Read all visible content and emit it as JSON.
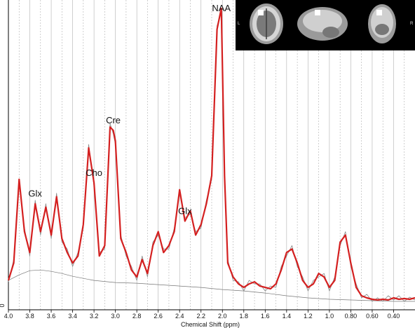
{
  "chart_data": {
    "type": "line",
    "xlabel": "Chemical Shift (ppm)",
    "x_ticks": [
      "4.0",
      "3.8",
      "3.6",
      "3.4",
      "3.2",
      "3.0",
      "2.8",
      "2.6",
      "2.4",
      "2.2",
      "2.0",
      "1.8",
      "1.6",
      "1.4",
      "1.2",
      "1.0",
      "0.80",
      "0.60",
      "0.40"
    ],
    "xlim": [
      4.0,
      0.2
    ],
    "x_reversed": true,
    "y_tick_label": "0",
    "grid": "vertical solid and dashed lines",
    "peaks": [
      {
        "label": "Glx",
        "ppm": 3.75
      },
      {
        "label": "Cho",
        "ppm": 3.2
      },
      {
        "label": "Cre",
        "ppm": 3.02
      },
      {
        "label": "Glx",
        "ppm": 2.35
      },
      {
        "label": "NAA",
        "ppm": 2.01
      }
    ],
    "series": [
      {
        "role": "fit",
        "color": "#d42020",
        "x": [
          4.0,
          3.95,
          3.9,
          3.85,
          3.8,
          3.75,
          3.7,
          3.65,
          3.6,
          3.55,
          3.5,
          3.45,
          3.4,
          3.35,
          3.3,
          3.25,
          3.2,
          3.15,
          3.1,
          3.05,
          3.02,
          3.0,
          2.95,
          2.9,
          2.85,
          2.8,
          2.75,
          2.7,
          2.65,
          2.6,
          2.55,
          2.5,
          2.45,
          2.4,
          2.35,
          2.3,
          2.25,
          2.2,
          2.15,
          2.1,
          2.05,
          2.01,
          1.98,
          1.95,
          1.9,
          1.85,
          1.8,
          1.75,
          1.7,
          1.65,
          1.6,
          1.55,
          1.5,
          1.45,
          1.4,
          1.35,
          1.3,
          1.25,
          1.2,
          1.15,
          1.1,
          1.05,
          1.0,
          0.95,
          0.9,
          0.85,
          0.8,
          0.75,
          0.7,
          0.65,
          0.6,
          0.55,
          0.5,
          0.45,
          0.4,
          0.35,
          0.3,
          0.25,
          0.2
        ],
        "y": [
          30,
          55,
          175,
          100,
          70,
          140,
          100,
          135,
          95,
          150,
          90,
          70,
          55,
          65,
          110,
          220,
          170,
          65,
          80,
          250,
          245,
          230,
          90,
          70,
          45,
          35,
          60,
          40,
          80,
          100,
          70,
          80,
          100,
          160,
          115,
          130,
          95,
          110,
          140,
          180,
          390,
          420,
          180,
          55,
          35,
          25,
          20,
          25,
          28,
          22,
          20,
          18,
          25,
          45,
          70,
          75,
          55,
          30,
          20,
          25,
          40,
          35,
          20,
          30,
          85,
          95,
          55,
          20,
          8,
          5,
          3,
          2,
          3,
          2,
          5,
          3,
          4,
          3,
          5
        ]
      },
      {
        "role": "data",
        "color": "#888888",
        "x": [
          4.0,
          3.95,
          3.9,
          3.85,
          3.8,
          3.75,
          3.7,
          3.65,
          3.6,
          3.55,
          3.5,
          3.45,
          3.4,
          3.35,
          3.3,
          3.25,
          3.2,
          3.15,
          3.1,
          3.05,
          3.02,
          3.0,
          2.95,
          2.9,
          2.85,
          2.8,
          2.75,
          2.7,
          2.65,
          2.6,
          2.55,
          2.5,
          2.45,
          2.4,
          2.35,
          2.3,
          2.25,
          2.2,
          2.15,
          2.1,
          2.05,
          2.01,
          1.98,
          1.95,
          1.9,
          1.85,
          1.8,
          1.75,
          1.7,
          1.65,
          1.6,
          1.55,
          1.5,
          1.45,
          1.4,
          1.35,
          1.3,
          1.25,
          1.2,
          1.15,
          1.1,
          1.05,
          1.0,
          0.95,
          0.9,
          0.85,
          0.8,
          0.75,
          0.7,
          0.65,
          0.6,
          0.55,
          0.5,
          0.45,
          0.4,
          0.35,
          0.3,
          0.25,
          0.2
        ],
        "y": [
          28,
          60,
          170,
          105,
          65,
          145,
          95,
          140,
          90,
          155,
          85,
          75,
          50,
          70,
          105,
          225,
          165,
          70,
          75,
          255,
          240,
          225,
          95,
          65,
          50,
          30,
          65,
          35,
          85,
          95,
          75,
          75,
          105,
          155,
          120,
          125,
          100,
          105,
          145,
          175,
          395,
          415,
          175,
          60,
          30,
          28,
          15,
          30,
          25,
          25,
          15,
          22,
          20,
          50,
          65,
          80,
          50,
          35,
          15,
          30,
          35,
          40,
          15,
          35,
          80,
          100,
          50,
          25,
          5,
          10,
          0,
          5,
          0,
          8,
          2,
          8,
          0,
          6,
          2
        ]
      },
      {
        "role": "baseline",
        "color": "#777777",
        "x": [
          4.0,
          3.9,
          3.8,
          3.7,
          3.6,
          3.5,
          3.4,
          3.3,
          3.2,
          3.0,
          2.8,
          2.6,
          2.4,
          2.2,
          2.0,
          1.8,
          1.6,
          1.4,
          1.2,
          1.0,
          0.8,
          0.6,
          0.4,
          0.2
        ],
        "y": [
          30,
          38,
          44,
          45,
          43,
          40,
          36,
          33,
          30,
          27,
          26,
          24,
          22,
          20,
          17,
          15,
          12,
          8,
          5,
          3,
          2,
          1,
          0,
          0
        ]
      }
    ]
  },
  "inset": {
    "left_label": "L",
    "right_label": "R"
  }
}
